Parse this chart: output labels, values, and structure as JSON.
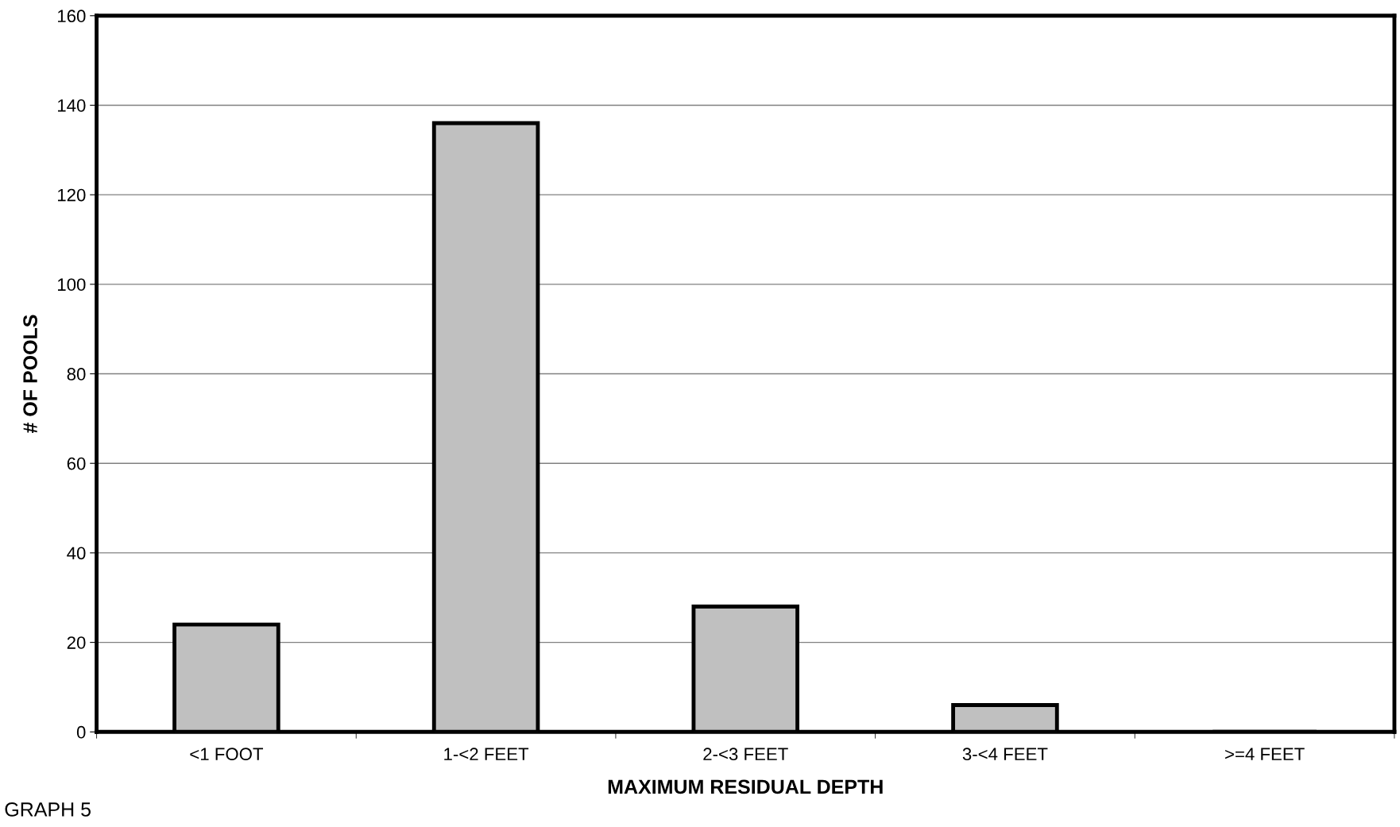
{
  "chart_data": {
    "type": "bar",
    "categories": [
      "<1 FOOT",
      "1-<2 FEET",
      "2-<3 FEET",
      "3-<4 FEET",
      ">=4 FEET"
    ],
    "values": [
      24,
      136,
      28,
      6,
      0
    ],
    "color": "#c0c0c0",
    "xlabel": "MAXIMUM RESIDUAL DEPTH",
    "ylabel": "# OF POOLS",
    "ylim": [
      0,
      160
    ],
    "yticks": [
      0,
      20,
      40,
      60,
      80,
      100,
      120,
      140,
      160
    ],
    "grid": "y",
    "legend": false,
    "annotations": [
      "GRAPH 5"
    ]
  }
}
